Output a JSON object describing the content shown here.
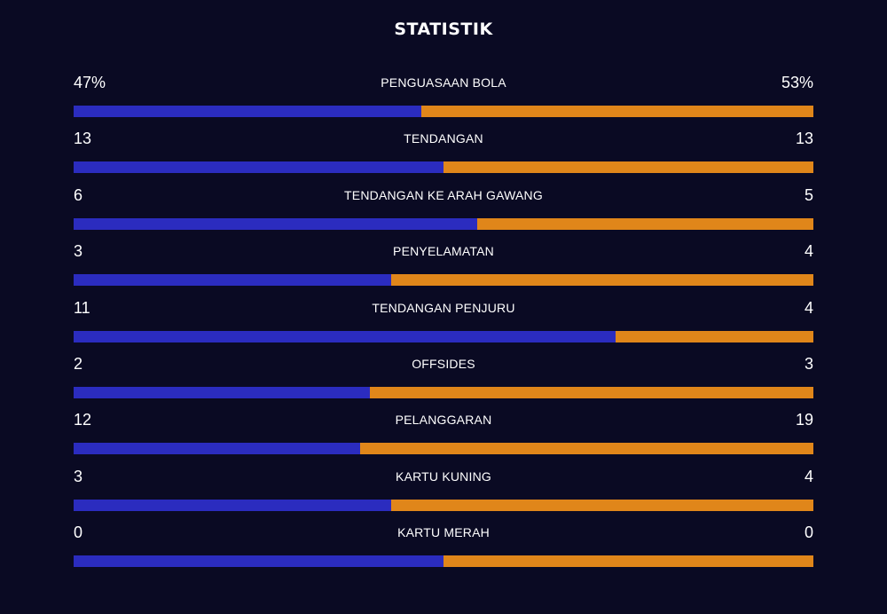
{
  "title": "STATISTIK",
  "colors": {
    "background": "#0a0a23",
    "home": "#2b2cbf",
    "away": "#e0861a",
    "text": "#ffffff"
  },
  "stats": [
    {
      "label": "PENGUASAAN BOLA",
      "home": "47%",
      "away": "53%",
      "home_share": 0.47
    },
    {
      "label": "TENDANGAN",
      "home": "13",
      "away": "13",
      "home_share": 0.5
    },
    {
      "label": "TENDANGAN KE ARAH GAWANG",
      "home": "6",
      "away": "5",
      "home_share": 0.545
    },
    {
      "label": "PENYELAMATAN",
      "home": "3",
      "away": "4",
      "home_share": 0.429
    },
    {
      "label": "TENDANGAN PENJURU",
      "home": "11",
      "away": "4",
      "home_share": 0.733
    },
    {
      "label": "OFFSIDES",
      "home": "2",
      "away": "3",
      "home_share": 0.4
    },
    {
      "label": "PELANGGARAN",
      "home": "12",
      "away": "19",
      "home_share": 0.387
    },
    {
      "label": "KARTU KUNING",
      "home": "3",
      "away": "4",
      "home_share": 0.429
    },
    {
      "label": "KARTU MERAH",
      "home": "0",
      "away": "0",
      "home_share": 0.5
    }
  ]
}
